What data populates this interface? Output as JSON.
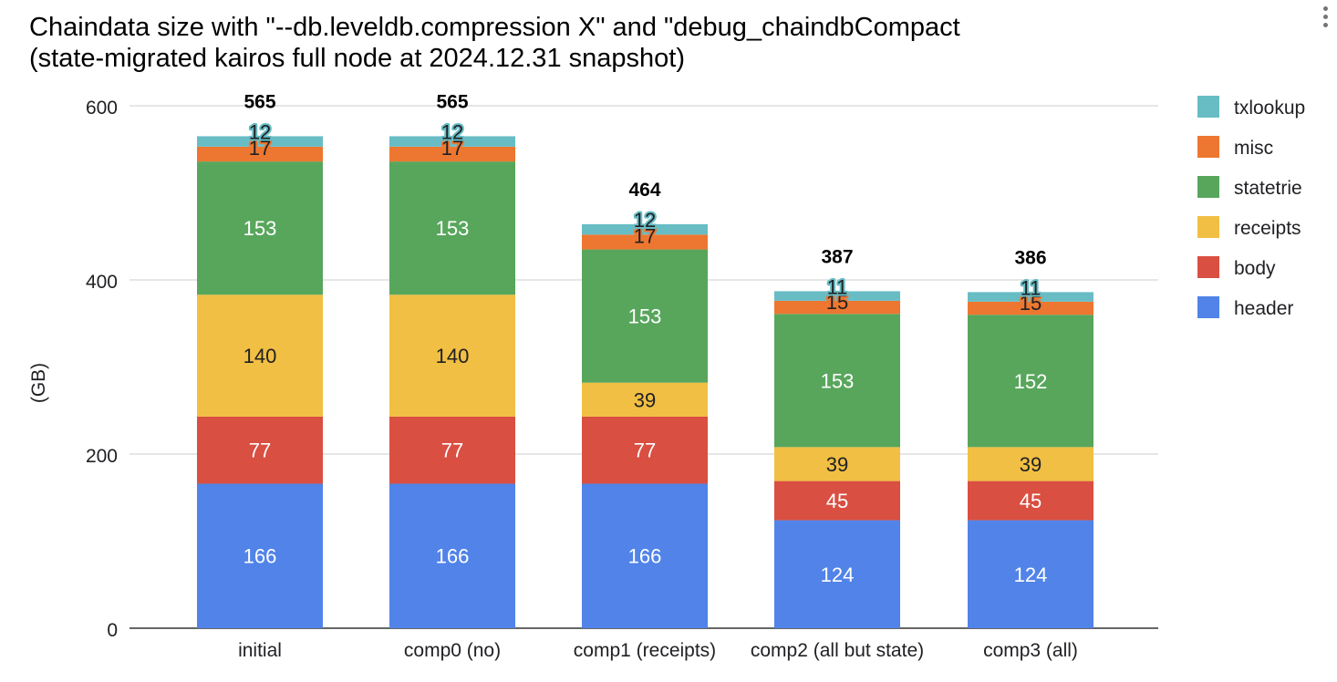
{
  "page": {
    "title_line1": "Chaindata size with \"--db.leveldb.compression X\" and \"debug_chaindbCompact",
    "title_line2": "(state-migrated kairos full node at 2024.12.31 snapshot)"
  },
  "chart_data": {
    "type": "bar",
    "stacked": true,
    "title": "Chaindata size with \"--db.leveldb.compression X\" and \"debug_chaindbCompact (state-migrated kairos full node at 2024.12.31 snapshot)",
    "xlabel": "",
    "ylabel": "(GB)",
    "ylim": [
      0,
      600
    ],
    "yticks": [
      0,
      200,
      400,
      600
    ],
    "grid": true,
    "legend_position": "right",
    "categories": [
      "initial",
      "comp0 (no)",
      "comp1 (receipts)",
      "comp2 (all but state)",
      "comp3 (all)"
    ],
    "totals": [
      565,
      565,
      464,
      387,
      386
    ],
    "series": [
      {
        "name": "header",
        "color": "#5183e8",
        "label_color": "#ffffff",
        "values": [
          166,
          166,
          166,
          124,
          124
        ]
      },
      {
        "name": "body",
        "color": "#d94f41",
        "label_color": "#ffffff",
        "values": [
          77,
          77,
          77,
          45,
          45
        ]
      },
      {
        "name": "receipts",
        "color": "#f1bf43",
        "label_color": "#202124",
        "values": [
          140,
          140,
          39,
          39,
          39
        ]
      },
      {
        "name": "statetrie",
        "color": "#58a65c",
        "label_color": "#ffffff",
        "values": [
          153,
          153,
          153,
          153,
          152
        ]
      },
      {
        "name": "misc",
        "color": "#ed7730",
        "label_color": "#202124",
        "values": [
          17,
          17,
          17,
          15,
          15
        ]
      },
      {
        "name": "txlookup",
        "color": "#68bdc5",
        "label_color": "#202124",
        "values": [
          12,
          12,
          12,
          11,
          11
        ]
      }
    ]
  }
}
